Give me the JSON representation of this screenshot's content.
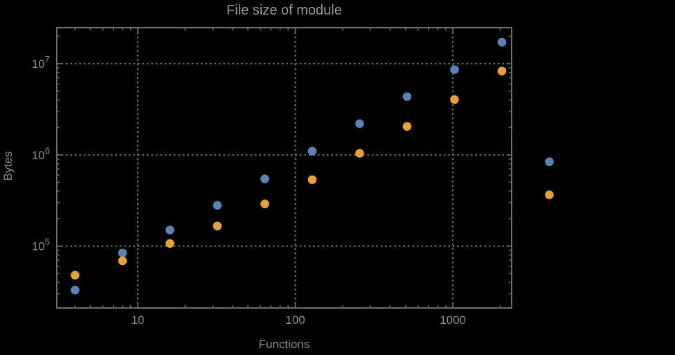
{
  "colors": {
    "background": "#000000",
    "frame": "#6e6e6e",
    "gridline": "#767676",
    "tick_label": "#8c8c8c",
    "title_text": "#969696",
    "axis_label": "#8a8a8a"
  },
  "chart_data": {
    "type": "scatter",
    "title": "File size of module",
    "xlabel": "Functions",
    "ylabel": "Bytes",
    "x_scale": "log",
    "y_scale": "log",
    "xlim": [
      3.06,
      2360
    ],
    "ylim": [
      21000,
      24800000
    ],
    "x_ticks": [
      10,
      100,
      1000
    ],
    "y_ticks": [
      100000,
      1000000,
      10000000
    ],
    "grid": "dotted",
    "legend": "none",
    "x": [
      4,
      8,
      16,
      32,
      64,
      128,
      256,
      512,
      1024,
      2048,
      4096
    ],
    "series": [
      {
        "name": "blue",
        "color": "#5c81b6",
        "values": [
          33000,
          84000,
          150000,
          280000,
          545000,
          1100000,
          2200000,
          4350000,
          8600000,
          17200000,
          840000
        ]
      },
      {
        "name": "orange",
        "color": "#e6a13c",
        "values": [
          48000,
          69000,
          107000,
          166000,
          290000,
          535000,
          1040000,
          2050000,
          4050000,
          8300000,
          365000
        ]
      }
    ]
  }
}
